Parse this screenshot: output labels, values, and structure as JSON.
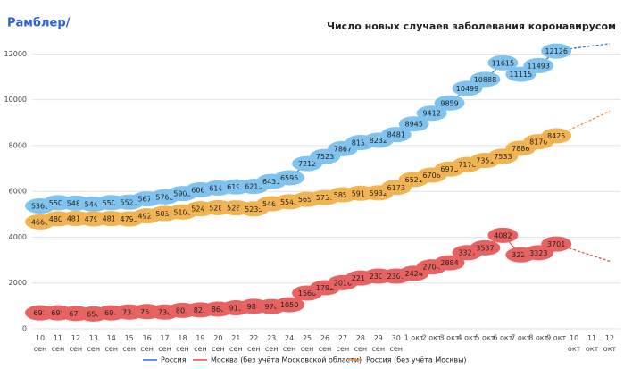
{
  "chart_data": {
    "type": "line",
    "brand": "Рамблер/",
    "title": "Число новых случаев заболевания коронавирусом",
    "categories": [
      "10\nсен",
      "11\nсен",
      "12\nсен",
      "13\nсен",
      "14\nсен",
      "15\nсен",
      "16\nсен",
      "17\nсен",
      "18\nсен",
      "19\nсен",
      "20\nсен",
      "21\nсен",
      "22\nсен",
      "23\nсен",
      "24\nсен",
      "25\nсен",
      "26\nсен",
      "27\nсен",
      "28\nсен",
      "29\nсен",
      "30\nсен",
      "1 окт",
      "2 окт",
      "3 окт",
      "4 окт",
      "5 окт",
      "6 окт",
      "7 окт",
      "8 окт",
      "9 окт",
      "10\nокт",
      "11\nокт",
      "12\nокт"
    ],
    "ylim": [
      0,
      12600
    ],
    "yticks": [
      0,
      2000,
      4000,
      6000,
      8000,
      10000,
      12000
    ],
    "grid": true,
    "series": [
      {
        "name": "Россия",
        "color": "#2f6fd6",
        "bubble": "#7fc3ee",
        "values": [
          5363,
          5504,
          5488,
          5449,
          5509,
          5529,
          5670,
          5762,
          5905,
          6065,
          6148,
          6196,
          6215,
          6431,
          6595,
          7212,
          7523,
          7867,
          8135,
          8232,
          8481,
          8945,
          9412,
          9859,
          10499,
          10888,
          11615,
          11115,
          11493,
          12126,
          null,
          null,
          null
        ],
        "trend": [
          null,
          null,
          null,
          null,
          null,
          null,
          null,
          null,
          null,
          null,
          null,
          null,
          null,
          null,
          null,
          null,
          null,
          null,
          null,
          null,
          null,
          null,
          null,
          null,
          null,
          null,
          null,
          null,
          null,
          12126,
          12250,
          12350,
          12450
        ]
      },
      {
        "name": "Москва (без учёта Московской области)",
        "color": "#e04848",
        "bubble": "#e86262",
        "values": [
          695,
          698,
          670,
          650,
          696,
          730,
          750,
          730,
          805,
          825,
          860,
          915,
          980,
          970,
          1050,
          1560,
          1792,
          2016,
          2217,
          2302,
          2300,
          2424,
          2704,
          2884,
          3327,
          3537,
          4082,
          3229,
          3323,
          3701,
          null,
          null,
          null
        ],
        "trend": [
          null,
          null,
          null,
          null,
          null,
          null,
          null,
          null,
          null,
          null,
          null,
          null,
          null,
          null,
          null,
          null,
          null,
          null,
          null,
          null,
          null,
          null,
          null,
          null,
          null,
          null,
          null,
          null,
          null,
          3701,
          3450,
          3200,
          2950
        ]
      },
      {
        "name": "Россия (без учёта Москвы)",
        "color": "#f08a30",
        "bubble": "#f2b452",
        "values": [
          4668,
          4804,
          4818,
          4799,
          4813,
          4799,
          4928,
          5032,
          5100,
          5240,
          5288,
          5281,
          5235,
          5461,
          5545,
          5652,
          5731,
          5851,
          5918,
          5932,
          6173,
          6521,
          6708,
          6975,
          7178,
          7351,
          7533,
          7886,
          8170,
          8425,
          null,
          null,
          null
        ],
        "trend": [
          null,
          null,
          null,
          null,
          null,
          null,
          null,
          null,
          null,
          null,
          null,
          null,
          null,
          null,
          null,
          null,
          null,
          null,
          null,
          null,
          null,
          null,
          null,
          null,
          null,
          null,
          null,
          null,
          null,
          8425,
          8780,
          9140,
          9500
        ]
      }
    ]
  }
}
